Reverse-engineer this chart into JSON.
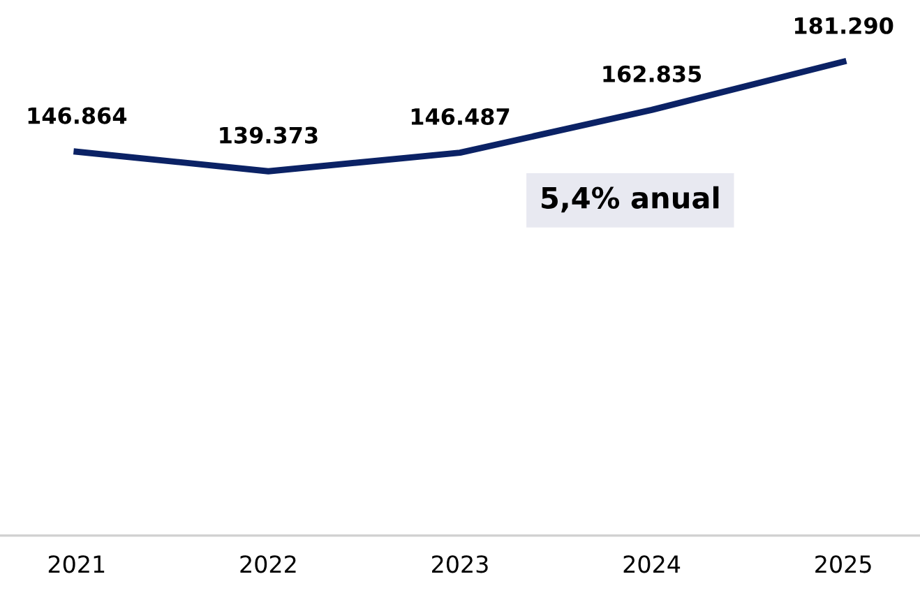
{
  "chart_data": {
    "type": "line",
    "categories": [
      "2021",
      "2022",
      "2023",
      "2024",
      "2025"
    ],
    "series": [
      {
        "color": "#0b2265",
        "values": [
          146864,
          139373,
          146487,
          162835,
          181290
        ],
        "value_labels": [
          "146.864",
          "139.373",
          "146.487",
          "162.835",
          "181.290"
        ]
      }
    ],
    "tick_labels": "x",
    "grid": false,
    "marker": "none",
    "line_style": "solid",
    "annotations": [
      "5,4% anual"
    ]
  }
}
